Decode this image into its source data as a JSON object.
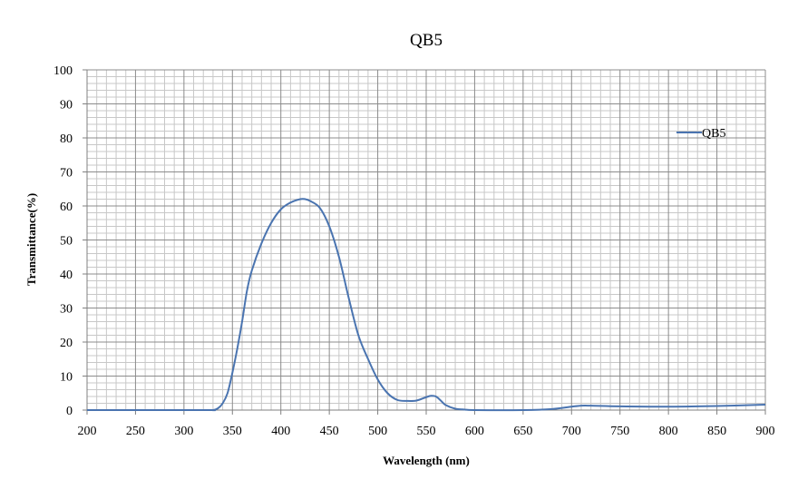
{
  "chart_data": {
    "type": "line",
    "title": "QB5",
    "xlabel": "Wavelength (nm)",
    "ylabel": "Transmittance(%)",
    "xlim": [
      200,
      900
    ],
    "ylim": [
      0,
      100
    ],
    "x_ticks": [
      200,
      250,
      300,
      350,
      400,
      450,
      500,
      550,
      600,
      650,
      700,
      750,
      800,
      850,
      900
    ],
    "y_ticks": [
      0,
      10,
      20,
      30,
      40,
      50,
      60,
      70,
      80,
      90,
      100
    ],
    "grid": true,
    "legend_position": "top-right",
    "series": [
      {
        "name": "QB5",
        "color": "#4a74b0",
        "x": [
          200,
          320,
          330,
          335,
          340,
          345,
          350,
          355,
          360,
          365,
          370,
          380,
          390,
          400,
          410,
          420,
          425,
          430,
          440,
          450,
          460,
          470,
          480,
          490,
          500,
          510,
          520,
          530,
          540,
          550,
          555,
          560,
          565,
          570,
          580,
          590,
          600,
          650,
          680,
          700,
          710,
          720,
          750,
          800,
          850,
          900
        ],
        "y": [
          0,
          0,
          0,
          0.5,
          2,
          5,
          11,
          18,
          26,
          35,
          41,
          49,
          55,
          59,
          61,
          62,
          62,
          61.5,
          59.5,
          54,
          45,
          33,
          22,
          15,
          9,
          5,
          3,
          2.7,
          2.8,
          3.8,
          4.2,
          4,
          2.8,
          1.5,
          0.4,
          0.15,
          0,
          0,
          0.3,
          1,
          1.3,
          1.3,
          1.1,
          1.0,
          1.2,
          1.6
        ]
      }
    ]
  }
}
